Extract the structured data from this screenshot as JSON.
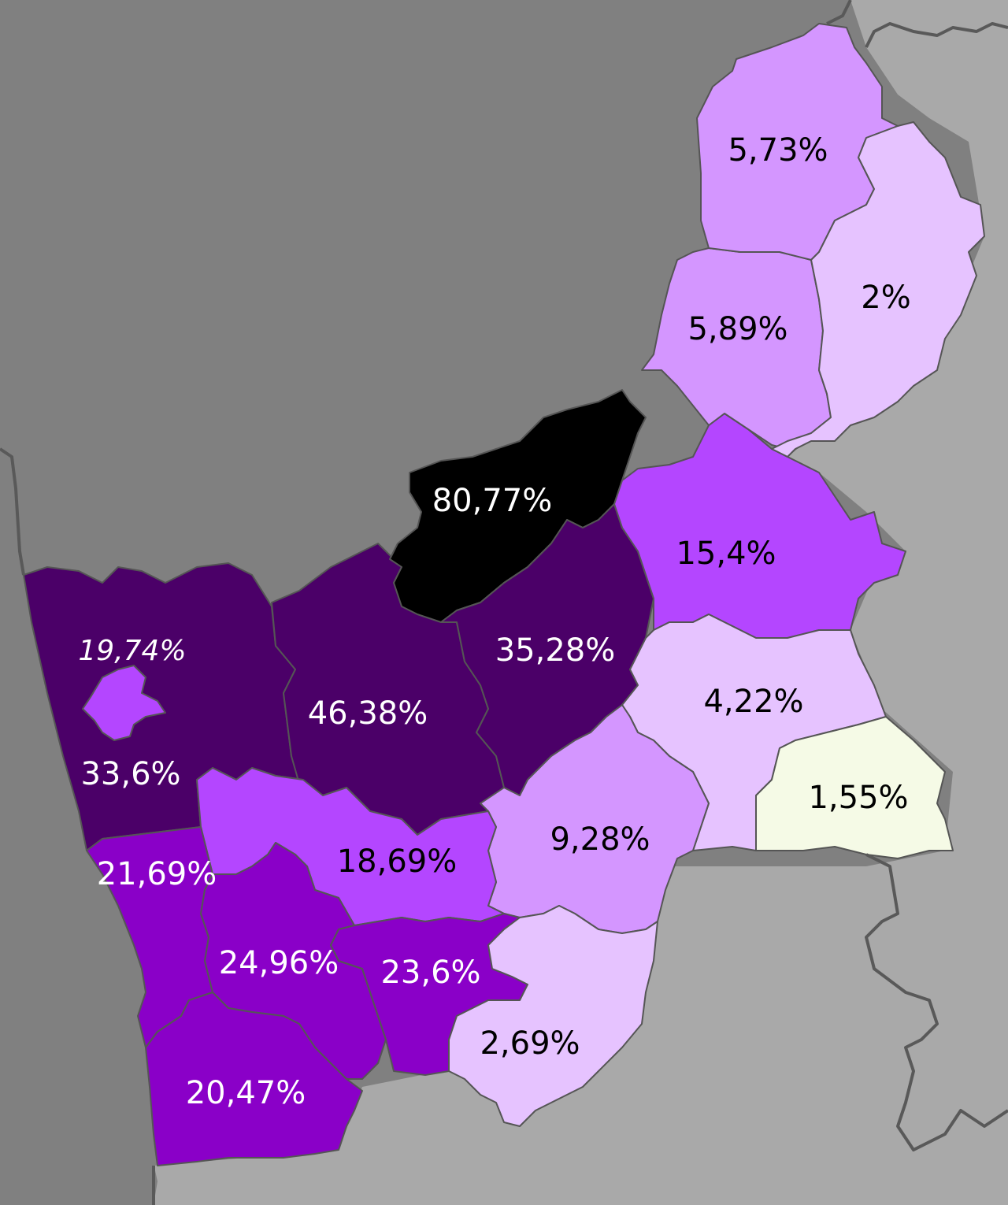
{
  "map": {
    "colors": {
      "background_west": "#808080",
      "background_east": "#a9a9a9",
      "region_border": "#555555",
      "outer_border": "#595959"
    },
    "regions": [
      {
        "id": "r-80-77",
        "label": "80,77%",
        "value": 80.77,
        "fill": "#000000",
        "text_color": "#ffffff"
      },
      {
        "id": "r-46-38",
        "label": "46,38%",
        "value": 46.38,
        "fill": "#4b0068",
        "text_color": "#ffffff"
      },
      {
        "id": "r-35-28",
        "label": "35,28%",
        "value": 35.28,
        "fill": "#4b0068",
        "text_color": "#ffffff"
      },
      {
        "id": "r-33-6",
        "label": "33,6%",
        "value": 33.6,
        "fill": "#4b0068",
        "text_color": "#ffffff"
      },
      {
        "id": "r-19-74",
        "label": "19,74%",
        "value": 19.74,
        "fill": "#b446ff",
        "text_color": "#ffffff"
      },
      {
        "id": "r-24-96",
        "label": "24,96%",
        "value": 24.96,
        "fill": "#8a00c8",
        "text_color": "#ffffff"
      },
      {
        "id": "r-23-6",
        "label": "23,6%",
        "value": 23.6,
        "fill": "#8a00c8",
        "text_color": "#ffffff"
      },
      {
        "id": "r-21-69",
        "label": "21,69%",
        "value": 21.69,
        "fill": "#8a00c8",
        "text_color": "#ffffff"
      },
      {
        "id": "r-20-47",
        "label": "20,47%",
        "value": 20.47,
        "fill": "#8a00c8",
        "text_color": "#ffffff"
      },
      {
        "id": "r-18-69",
        "label": "18,69%",
        "value": 18.69,
        "fill": "#b446ff",
        "text_color": "#000000"
      },
      {
        "id": "r-15-4",
        "label": "15,4%",
        "value": 15.4,
        "fill": "#b446ff",
        "text_color": "#000000"
      },
      {
        "id": "r-9-28",
        "label": "9,28%",
        "value": 9.28,
        "fill": "#d496ff",
        "text_color": "#000000"
      },
      {
        "id": "r-5-89",
        "label": "5,89%",
        "value": 5.89,
        "fill": "#d496ff",
        "text_color": "#000000"
      },
      {
        "id": "r-5-73",
        "label": "5,73%",
        "value": 5.73,
        "fill": "#d496ff",
        "text_color": "#000000"
      },
      {
        "id": "r-4-22",
        "label": "4,22%",
        "value": 4.22,
        "fill": "#e6c3ff",
        "text_color": "#000000"
      },
      {
        "id": "r-2-69",
        "label": "2,69%",
        "value": 2.69,
        "fill": "#e6c3ff",
        "text_color": "#000000"
      },
      {
        "id": "r-2",
        "label": "2%",
        "value": 2,
        "fill": "#e6c3ff",
        "text_color": "#000000"
      },
      {
        "id": "r-1-55",
        "label": "1,55%",
        "value": 1.55,
        "fill": "#f5fae6",
        "text_color": "#000000"
      }
    ]
  }
}
